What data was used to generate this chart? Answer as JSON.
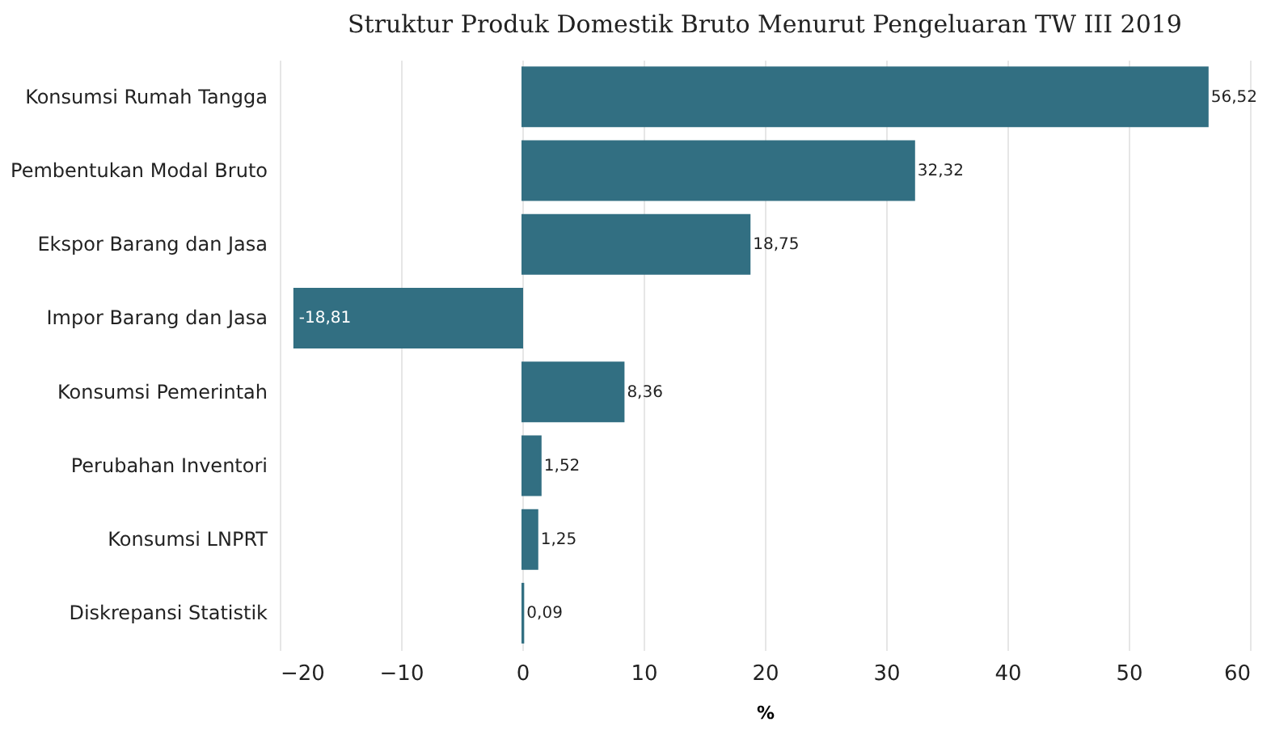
{
  "chart_data": {
    "type": "bar",
    "orientation": "horizontal",
    "title": "Struktur Produk Domestik Bruto Menurut Pengeluaran TW III 2019",
    "xlabel": "%",
    "categories": [
      "Konsumsi Rumah Tangga",
      "Pembentukan Modal Bruto",
      "Ekspor Barang dan Jasa",
      "Impor Barang dan Jasa",
      "Konsumsi Pemerintah",
      "Perubahan Inventori",
      "Konsumsi LNPRT",
      "Diskrepansi Statistik"
    ],
    "values": [
      56.52,
      32.32,
      18.75,
      -18.81,
      8.36,
      1.52,
      1.25,
      0.09
    ],
    "value_labels": [
      "56,52",
      "32,32",
      "18,75",
      "-18,81",
      "8,36",
      "1,52",
      "1,25",
      "0,09"
    ],
    "color": "#326f82",
    "xlim": [
      -20,
      60
    ],
    "xticks": [
      -20,
      -10,
      0,
      10,
      20,
      30,
      40,
      50,
      60
    ],
    "grid": "x"
  }
}
